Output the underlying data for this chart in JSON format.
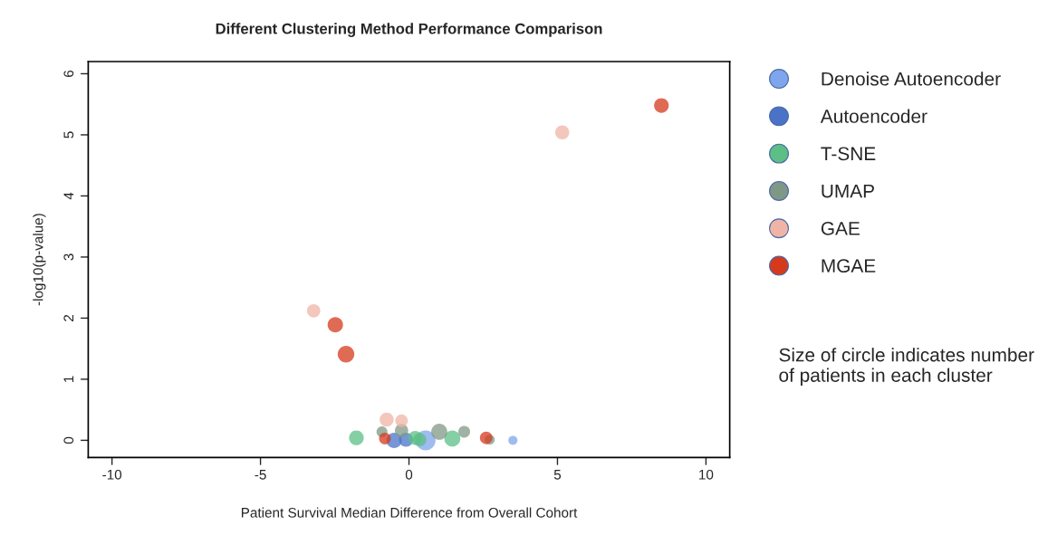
{
  "chart_data": {
    "type": "bubble",
    "title": "Different Clustering Method Performance Comparison",
    "xlabel": "Patient Survival Median Difference from Overall Cohort",
    "ylabel": "-log10(p-value)",
    "xlim": [
      -10.8,
      10.8
    ],
    "xticks": [
      -10,
      -5,
      0,
      5,
      10
    ],
    "ylim": [
      -0.28,
      6.2
    ],
    "yticks": [
      0,
      1,
      2,
      3,
      4,
      5,
      6
    ],
    "grid": false,
    "legend": "right",
    "marker": "circle",
    "series": [
      {
        "name": "Denoise Autoencoder",
        "color": "#7fa6ec",
        "x": [
          0.56,
          3.5
        ],
        "values": [
          0,
          0
        ],
        "sizes": [
          1.0,
          0.21
        ]
      },
      {
        "name": "Autoencoder",
        "color": "#4a73c8",
        "x": [
          -0.5,
          -0.1
        ],
        "values": [
          0,
          0.01
        ],
        "sizes": [
          0.6,
          0.5
        ]
      },
      {
        "name": "T-SNE",
        "color": "#5cbf86",
        "x": [
          -1.77,
          0.21,
          0.36,
          1.46
        ],
        "values": [
          0.04,
          0.04,
          0.01,
          0.03
        ],
        "sizes": [
          0.55,
          0.5,
          0.45,
          0.65
        ]
      },
      {
        "name": "UMAP",
        "color": "#7f9886",
        "x": [
          -0.91,
          -0.25,
          1.02,
          1.86,
          2.72
        ],
        "values": [
          0.14,
          0.16,
          0.14,
          0.14,
          0.01
        ],
        "sizes": [
          0.3,
          0.45,
          0.65,
          0.35,
          0.25
        ]
      },
      {
        "name": "GAE",
        "color": "#f0b4a6",
        "x": [
          -0.75,
          -0.25,
          5.16,
          -3.21
        ],
        "values": [
          0.34,
          0.32,
          5.04,
          2.12
        ],
        "sizes": [
          0.5,
          0.4,
          0.5,
          0.45
        ]
      },
      {
        "name": "MGAE",
        "color": "#d63a1c",
        "x": [
          -0.81,
          2.6,
          8.5,
          -2.48,
          -2.12
        ],
        "values": [
          0.03,
          0.04,
          5.48,
          1.89,
          1.41
        ],
        "sizes": [
          0.35,
          0.4,
          0.55,
          0.6,
          0.7
        ]
      }
    ],
    "annotations": [
      "Size of circle indicates number of patients in each cluster"
    ]
  }
}
